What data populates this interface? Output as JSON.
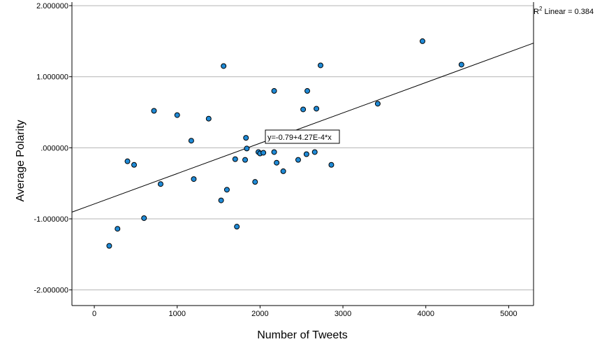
{
  "chart_data": {
    "type": "scatter",
    "xlabel": "Number of Tweets",
    "ylabel": "Average Polarity",
    "xlim": [
      -270,
      5300
    ],
    "ylim": [
      -2.22,
      2.05
    ],
    "x_ticks": [
      0,
      1000,
      2000,
      3000,
      4000,
      5000
    ],
    "x_tick_labels": [
      "0",
      "1000",
      "2000",
      "3000",
      "4000",
      "5000"
    ],
    "y_ticks": [
      -2,
      -1,
      0,
      1,
      2
    ],
    "y_tick_labels": [
      "-2.000000",
      "-1.000000",
      ".000000",
      "1.000000",
      "2.000000"
    ],
    "grid": "horizontal",
    "fit_line": {
      "intercept": -0.79,
      "slope": 0.000427,
      "label": "y=-0.79+4.27E-4*x"
    },
    "r2_label": {
      "prefix": "R",
      "superscript": "2",
      "text": " Linear = 0.384"
    },
    "points": [
      {
        "x": 180,
        "y": -1.38
      },
      {
        "x": 280,
        "y": -1.14
      },
      {
        "x": 400,
        "y": -0.19
      },
      {
        "x": 480,
        "y": -0.24
      },
      {
        "x": 600,
        "y": -0.99
      },
      {
        "x": 720,
        "y": 0.52
      },
      {
        "x": 800,
        "y": -0.51
      },
      {
        "x": 1000,
        "y": 0.46
      },
      {
        "x": 1170,
        "y": 0.1
      },
      {
        "x": 1200,
        "y": -0.44
      },
      {
        "x": 1380,
        "y": 0.41
      },
      {
        "x": 1530,
        "y": -0.74
      },
      {
        "x": 1560,
        "y": 1.15
      },
      {
        "x": 1600,
        "y": -0.59
      },
      {
        "x": 1700,
        "y": -0.16
      },
      {
        "x": 1720,
        "y": -1.11
      },
      {
        "x": 1820,
        "y": -0.17
      },
      {
        "x": 1830,
        "y": 0.14
      },
      {
        "x": 1840,
        "y": -0.01
      },
      {
        "x": 1940,
        "y": -0.48
      },
      {
        "x": 1980,
        "y": -0.06
      },
      {
        "x": 2000,
        "y": -0.08
      },
      {
        "x": 2040,
        "y": -0.07
      },
      {
        "x": 2170,
        "y": 0.8
      },
      {
        "x": 2170,
        "y": -0.06
      },
      {
        "x": 2200,
        "y": -0.21
      },
      {
        "x": 2280,
        "y": -0.33
      },
      {
        "x": 2460,
        "y": -0.17
      },
      {
        "x": 2490,
        "y": 0.16
      },
      {
        "x": 2520,
        "y": 0.54
      },
      {
        "x": 2560,
        "y": -0.09
      },
      {
        "x": 2570,
        "y": 0.8
      },
      {
        "x": 2660,
        "y": -0.06
      },
      {
        "x": 2680,
        "y": 0.55
      },
      {
        "x": 2730,
        "y": 1.16
      },
      {
        "x": 2860,
        "y": -0.24
      },
      {
        "x": 3420,
        "y": 0.62
      },
      {
        "x": 3960,
        "y": 1.5
      },
      {
        "x": 4430,
        "y": 1.17
      }
    ]
  }
}
